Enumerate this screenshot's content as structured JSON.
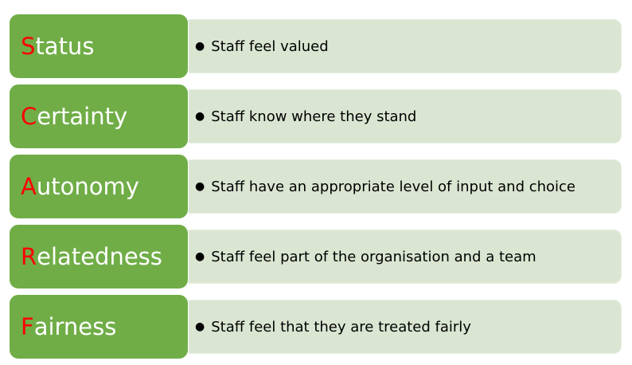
{
  "items": [
    {
      "first": "S",
      "rest": "tatus",
      "detail": "Staff feel valued"
    },
    {
      "first": "C",
      "rest": "ertainty",
      "detail": "Staff know where they stand"
    },
    {
      "first": "A",
      "rest": "utonomy",
      "detail": "Staff have an appropriate level of input and choice"
    },
    {
      "first": "R",
      "rest": "elatedness",
      "detail": "Staff feel part of the organisation and a team"
    },
    {
      "first": "F",
      "rest": "airness",
      "detail": "Staff feel that they are treated fairly"
    }
  ],
  "colors": {
    "key_fill": "#70ad47",
    "detail_fill": "#dae6d2",
    "initial_letter": "#ff0000"
  }
}
